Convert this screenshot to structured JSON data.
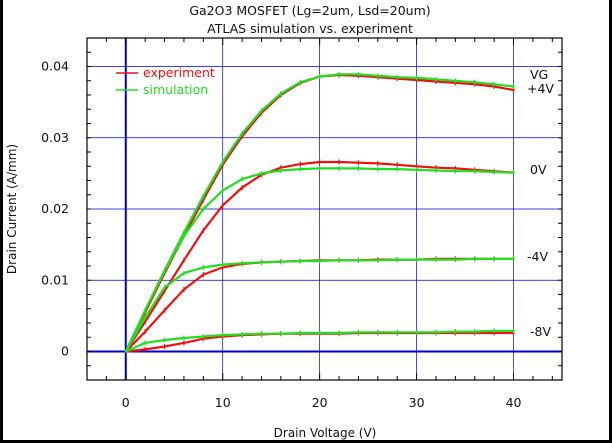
{
  "chart_data": {
    "type": "line",
    "title": "Ga2O3 MOSFET (Lg=2um, Lsd=20um)",
    "subtitle": "ATLAS simulation vs. experiment",
    "xlabel": "Drain Voltage (V)",
    "ylabel": "Drain Current (A/mm)",
    "xlim": [
      -4,
      45
    ],
    "ylim": [
      -0.004,
      0.044
    ],
    "x_ticks": [
      "0",
      "10",
      "20",
      "30",
      "40"
    ],
    "y_ticks": [
      "0",
      "0.01",
      "0.02",
      "0.03",
      "0.04"
    ],
    "grid": true,
    "legend_position": "top-left",
    "vg_header": "VG",
    "colors": {
      "experiment": "#ee1111",
      "simulation": "#22dd22",
      "grid": "#0000cc"
    },
    "series": [
      {
        "name": "experiment",
        "vg": "+4V",
        "x": [
          0,
          2,
          4,
          6,
          8,
          10,
          12,
          14,
          16,
          18,
          20,
          22,
          24,
          26,
          28,
          30,
          32,
          34,
          36,
          38,
          40
        ],
        "y": [
          0,
          0.0055,
          0.011,
          0.0162,
          0.0213,
          0.0262,
          0.0302,
          0.0335,
          0.036,
          0.0377,
          0.0386,
          0.0388,
          0.0387,
          0.0385,
          0.0383,
          0.0381,
          0.0379,
          0.0377,
          0.0375,
          0.0372,
          0.0367
        ]
      },
      {
        "name": "simulation",
        "vg": "+4V",
        "x": [
          0,
          2,
          4,
          6,
          8,
          10,
          12,
          14,
          16,
          18,
          20,
          22,
          24,
          26,
          28,
          30,
          32,
          34,
          36,
          38,
          40
        ],
        "y": [
          0,
          0.0058,
          0.0114,
          0.0167,
          0.0218,
          0.0266,
          0.0306,
          0.0338,
          0.0362,
          0.0378,
          0.0386,
          0.0389,
          0.0389,
          0.0387,
          0.0385,
          0.0384,
          0.0382,
          0.038,
          0.0378,
          0.0375,
          0.0372
        ]
      },
      {
        "name": "experiment",
        "vg": "0V",
        "x": [
          0,
          2,
          4,
          6,
          8,
          10,
          12,
          14,
          16,
          18,
          20,
          22,
          24,
          26,
          28,
          30,
          32,
          34,
          36,
          38,
          40
        ],
        "y": [
          0,
          0.0042,
          0.0085,
          0.0128,
          0.017,
          0.0205,
          0.023,
          0.0248,
          0.0258,
          0.0263,
          0.0266,
          0.0266,
          0.0265,
          0.0264,
          0.0262,
          0.026,
          0.0258,
          0.0257,
          0.0255,
          0.0253,
          0.0251
        ]
      },
      {
        "name": "simulation",
        "vg": "0V",
        "x": [
          0,
          2,
          4,
          6,
          8,
          10,
          12,
          14,
          16,
          18,
          20,
          22,
          24,
          26,
          28,
          30,
          32,
          34,
          36,
          38,
          40
        ],
        "y": [
          0,
          0.0058,
          0.0113,
          0.0162,
          0.02,
          0.0226,
          0.0242,
          0.025,
          0.0254,
          0.0256,
          0.0257,
          0.0257,
          0.0257,
          0.0256,
          0.0256,
          0.0255,
          0.0254,
          0.0253,
          0.0253,
          0.0252,
          0.0251
        ]
      },
      {
        "name": "experiment",
        "vg": "-4V",
        "x": [
          0,
          2,
          4,
          6,
          8,
          10,
          12,
          14,
          16,
          18,
          20,
          22,
          24,
          26,
          28,
          30,
          32,
          34,
          36,
          38,
          40
        ],
        "y": [
          0,
          0.0028,
          0.0058,
          0.0087,
          0.0108,
          0.0118,
          0.0123,
          0.0125,
          0.0126,
          0.0127,
          0.0128,
          0.0128,
          0.0128,
          0.0129,
          0.0129,
          0.0129,
          0.013,
          0.013,
          0.013,
          0.013,
          0.013
        ]
      },
      {
        "name": "simulation",
        "vg": "-4V",
        "x": [
          0,
          2,
          4,
          6,
          8,
          10,
          12,
          14,
          16,
          18,
          20,
          22,
          24,
          26,
          28,
          30,
          32,
          34,
          36,
          38,
          40
        ],
        "y": [
          0,
          0.0048,
          0.009,
          0.011,
          0.0118,
          0.0122,
          0.0124,
          0.0125,
          0.0126,
          0.0127,
          0.0127,
          0.0128,
          0.0128,
          0.0128,
          0.0129,
          0.0129,
          0.0129,
          0.0129,
          0.013,
          0.013,
          0.013
        ]
      },
      {
        "name": "experiment",
        "vg": "-8V",
        "x": [
          0,
          2,
          4,
          6,
          8,
          10,
          12,
          14,
          16,
          18,
          20,
          22,
          24,
          26,
          28,
          30,
          32,
          34,
          36,
          38,
          40
        ],
        "y": [
          0,
          0.0003,
          0.0007,
          0.0012,
          0.0018,
          0.0021,
          0.0023,
          0.0024,
          0.0025,
          0.0025,
          0.0025,
          0.0025,
          0.0026,
          0.0026,
          0.0026,
          0.0026,
          0.0026,
          0.0026,
          0.0026,
          0.0026,
          0.0026
        ]
      },
      {
        "name": "simulation",
        "vg": "-8V",
        "x": [
          0,
          2,
          4,
          6,
          8,
          10,
          12,
          14,
          16,
          18,
          20,
          22,
          24,
          26,
          28,
          30,
          32,
          34,
          36,
          38,
          40
        ],
        "y": [
          0,
          0.0012,
          0.0016,
          0.0019,
          0.0021,
          0.0023,
          0.0024,
          0.0025,
          0.0025,
          0.0026,
          0.0026,
          0.0026,
          0.0027,
          0.0027,
          0.0027,
          0.0027,
          0.0027,
          0.0028,
          0.0028,
          0.0029,
          0.0029
        ]
      }
    ]
  }
}
